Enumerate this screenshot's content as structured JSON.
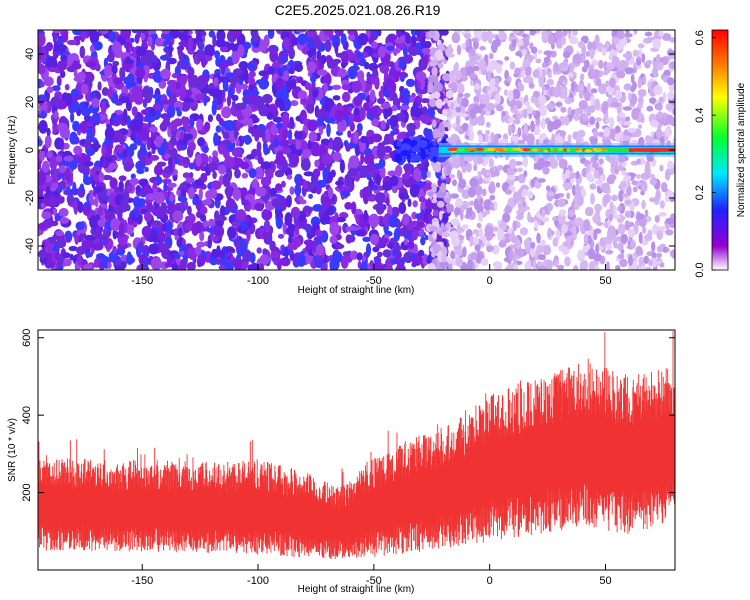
{
  "title": "C2E5.2025.021.08.26.R19",
  "chart_data": [
    {
      "type": "heatmap",
      "title": "C2E5.2025.021.08.26.R19",
      "xlabel": "Height of straight line (km)",
      "ylabel": "Frequency (Hz)",
      "xlim": [
        -195,
        80
      ],
      "ylim": [
        -50,
        50
      ],
      "xticks": [
        "-150",
        "-100",
        "-50",
        "0",
        "50"
      ],
      "xtick_values": [
        -150,
        -100,
        -50,
        0,
        50
      ],
      "yticks": [
        "-40",
        "-20",
        "0",
        "20",
        "40"
      ],
      "ytick_values": [
        -40,
        -20,
        0,
        20,
        40
      ],
      "colorbar": {
        "label": "Normalized spectral amplitude",
        "range": [
          0.0,
          0.62
        ],
        "ticks": [
          "0.0",
          "0.2",
          "0.4",
          "0.6"
        ],
        "tick_values": [
          0.0,
          0.2,
          0.4,
          0.6
        ]
      },
      "dense_noise_region_x": [
        -195,
        -22
      ],
      "signal_band": {
        "x_start": -22,
        "x_end": 80,
        "frequency_hz": 0
      }
    },
    {
      "type": "area",
      "xlabel": "Height of straight line (km)",
      "ylabel": "SNR (10 * v/v)",
      "xlim": [
        -195,
        80
      ],
      "ylim": [
        0,
        620
      ],
      "xticks": [
        "-150",
        "-100",
        "-50",
        "0",
        "50"
      ],
      "xtick_values": [
        -150,
        -100,
        -50,
        0,
        50
      ],
      "yticks": [
        "200",
        "400",
        "600"
      ],
      "ytick_values": [
        200,
        400,
        600
      ],
      "color": "#f03232",
      "envelope": {
        "x": [
          -195,
          -175,
          -150,
          -125,
          -100,
          -80,
          -65,
          -50,
          -30,
          -10,
          0,
          20,
          40,
          60,
          80
        ],
        "lower": [
          60,
          60,
          55,
          55,
          50,
          40,
          35,
          45,
          60,
          80,
          90,
          110,
          130,
          110,
          140
        ],
        "upper": [
          270,
          275,
          270,
          265,
          270,
          240,
          200,
          280,
          330,
          380,
          430,
          470,
          510,
          480,
          500
        ]
      }
    }
  ]
}
